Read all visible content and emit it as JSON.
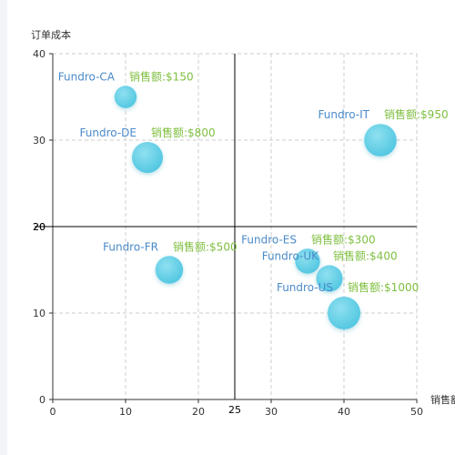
{
  "chart_data": {
    "type": "scatter",
    "subtype": "bubble-quadrant",
    "xlabel": "销售额",
    "ylabel": "订单成本",
    "xlim": [
      0,
      50
    ],
    "ylim": [
      0,
      40
    ],
    "x_ticks": [
      0,
      10,
      20,
      30,
      40,
      50
    ],
    "y_ticks": [
      0,
      10,
      20,
      30,
      40
    ],
    "grid": true,
    "reference_lines": {
      "x": 25,
      "y": 20
    },
    "reference_labels": {
      "x": "25",
      "y": "20"
    },
    "sales_prefix": "销售额:",
    "points": [
      {
        "name": "Fundro-CA",
        "x": 10,
        "y": 35,
        "sales": "$150"
      },
      {
        "name": "Fundro-DE",
        "x": 13,
        "y": 28,
        "sales": "$800"
      },
      {
        "name": "Fundro-IT",
        "x": 45,
        "y": 30,
        "sales": "$950"
      },
      {
        "name": "Fundro-FR",
        "x": 16,
        "y": 15,
        "sales": "$500"
      },
      {
        "name": "Fundro-ES",
        "x": 35,
        "y": 16,
        "sales": "$300"
      },
      {
        "name": "Fundro-UK",
        "x": 38,
        "y": 14,
        "sales": "$400"
      },
      {
        "name": "Fundro-US",
        "x": 40,
        "y": 10,
        "sales": "$1000"
      }
    ],
    "sales_values": [
      150,
      800,
      950,
      500,
      300,
      400,
      1000
    ],
    "colors": {
      "bubble": "#5bcfe6",
      "bubble_edge": "#46bfd9",
      "name_label": "#4a8ac9",
      "sales_label": "#7fbf3f",
      "grid": "#cccccc",
      "axis": "#333333",
      "reference": "#000000"
    }
  }
}
